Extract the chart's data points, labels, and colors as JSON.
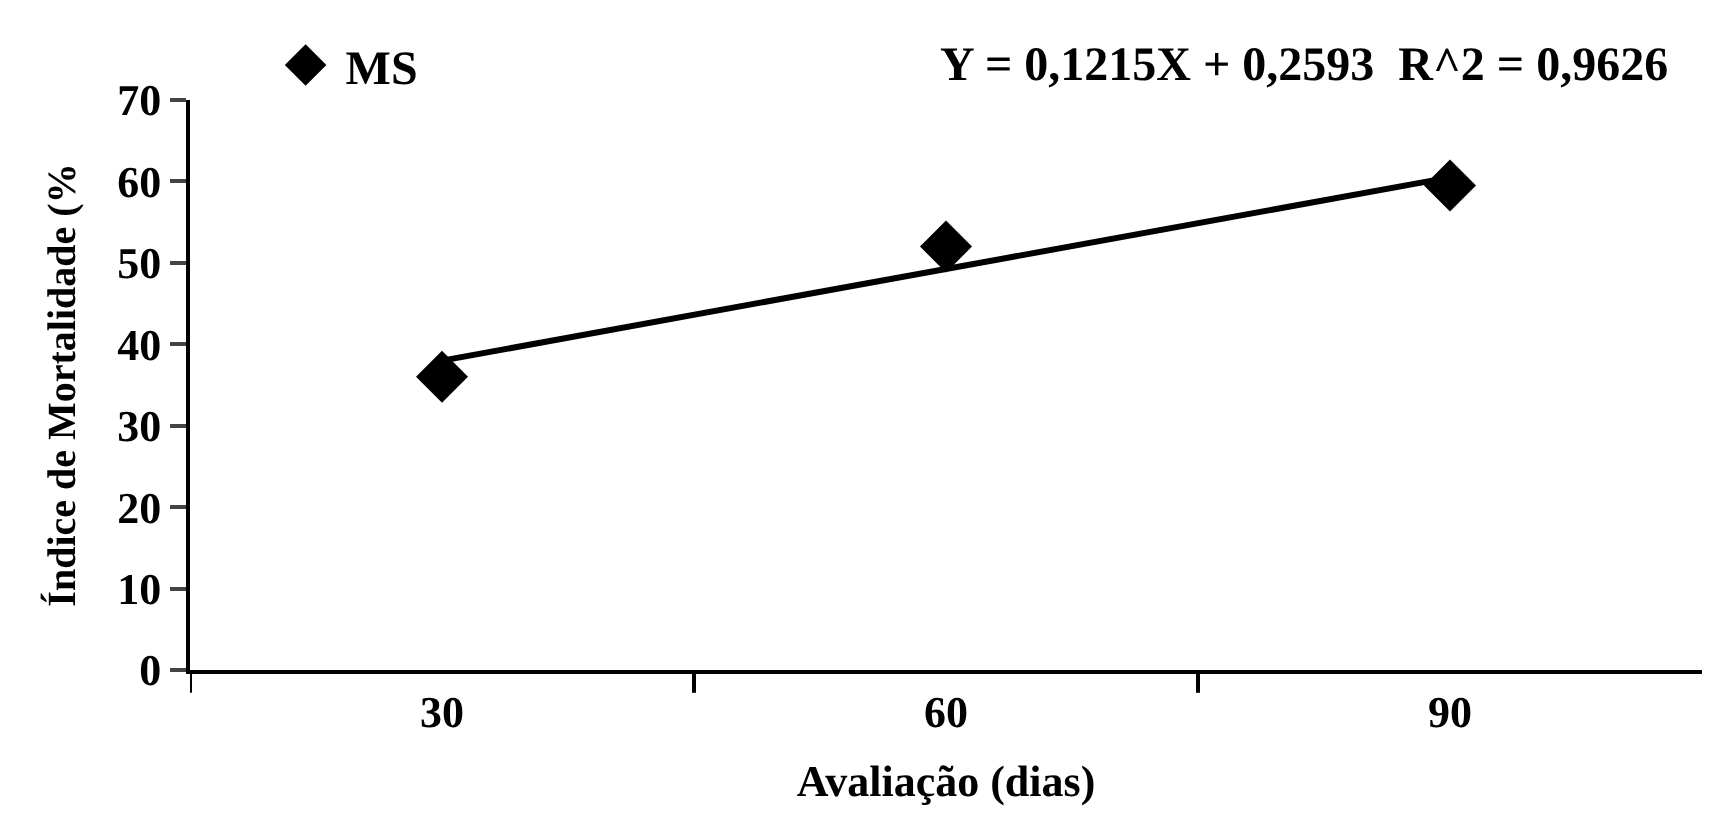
{
  "chart_data": {
    "type": "scatter",
    "xlabel": "Avaliação (dias)",
    "ylabel": "Índice de Mortalidade (%",
    "categories": [
      "30",
      "60",
      "90"
    ],
    "series": [
      {
        "name": "MS",
        "color": "#000000",
        "marker": "diamond",
        "values": [
          36,
          52,
          59.5
        ]
      },
      {
        "type": "line",
        "color": "#000000",
        "marker": "none",
        "line_style": "solid",
        "values": [
          38,
          null,
          60.5
        ]
      }
    ],
    "annotations": [
      "Y = 0,1215X + 0,2593  R^2 = 0,9626"
    ],
    "ylim": [
      0,
      70
    ],
    "yticks": [
      0,
      10,
      20,
      30,
      40,
      50,
      60,
      70
    ],
    "legend": "top"
  }
}
